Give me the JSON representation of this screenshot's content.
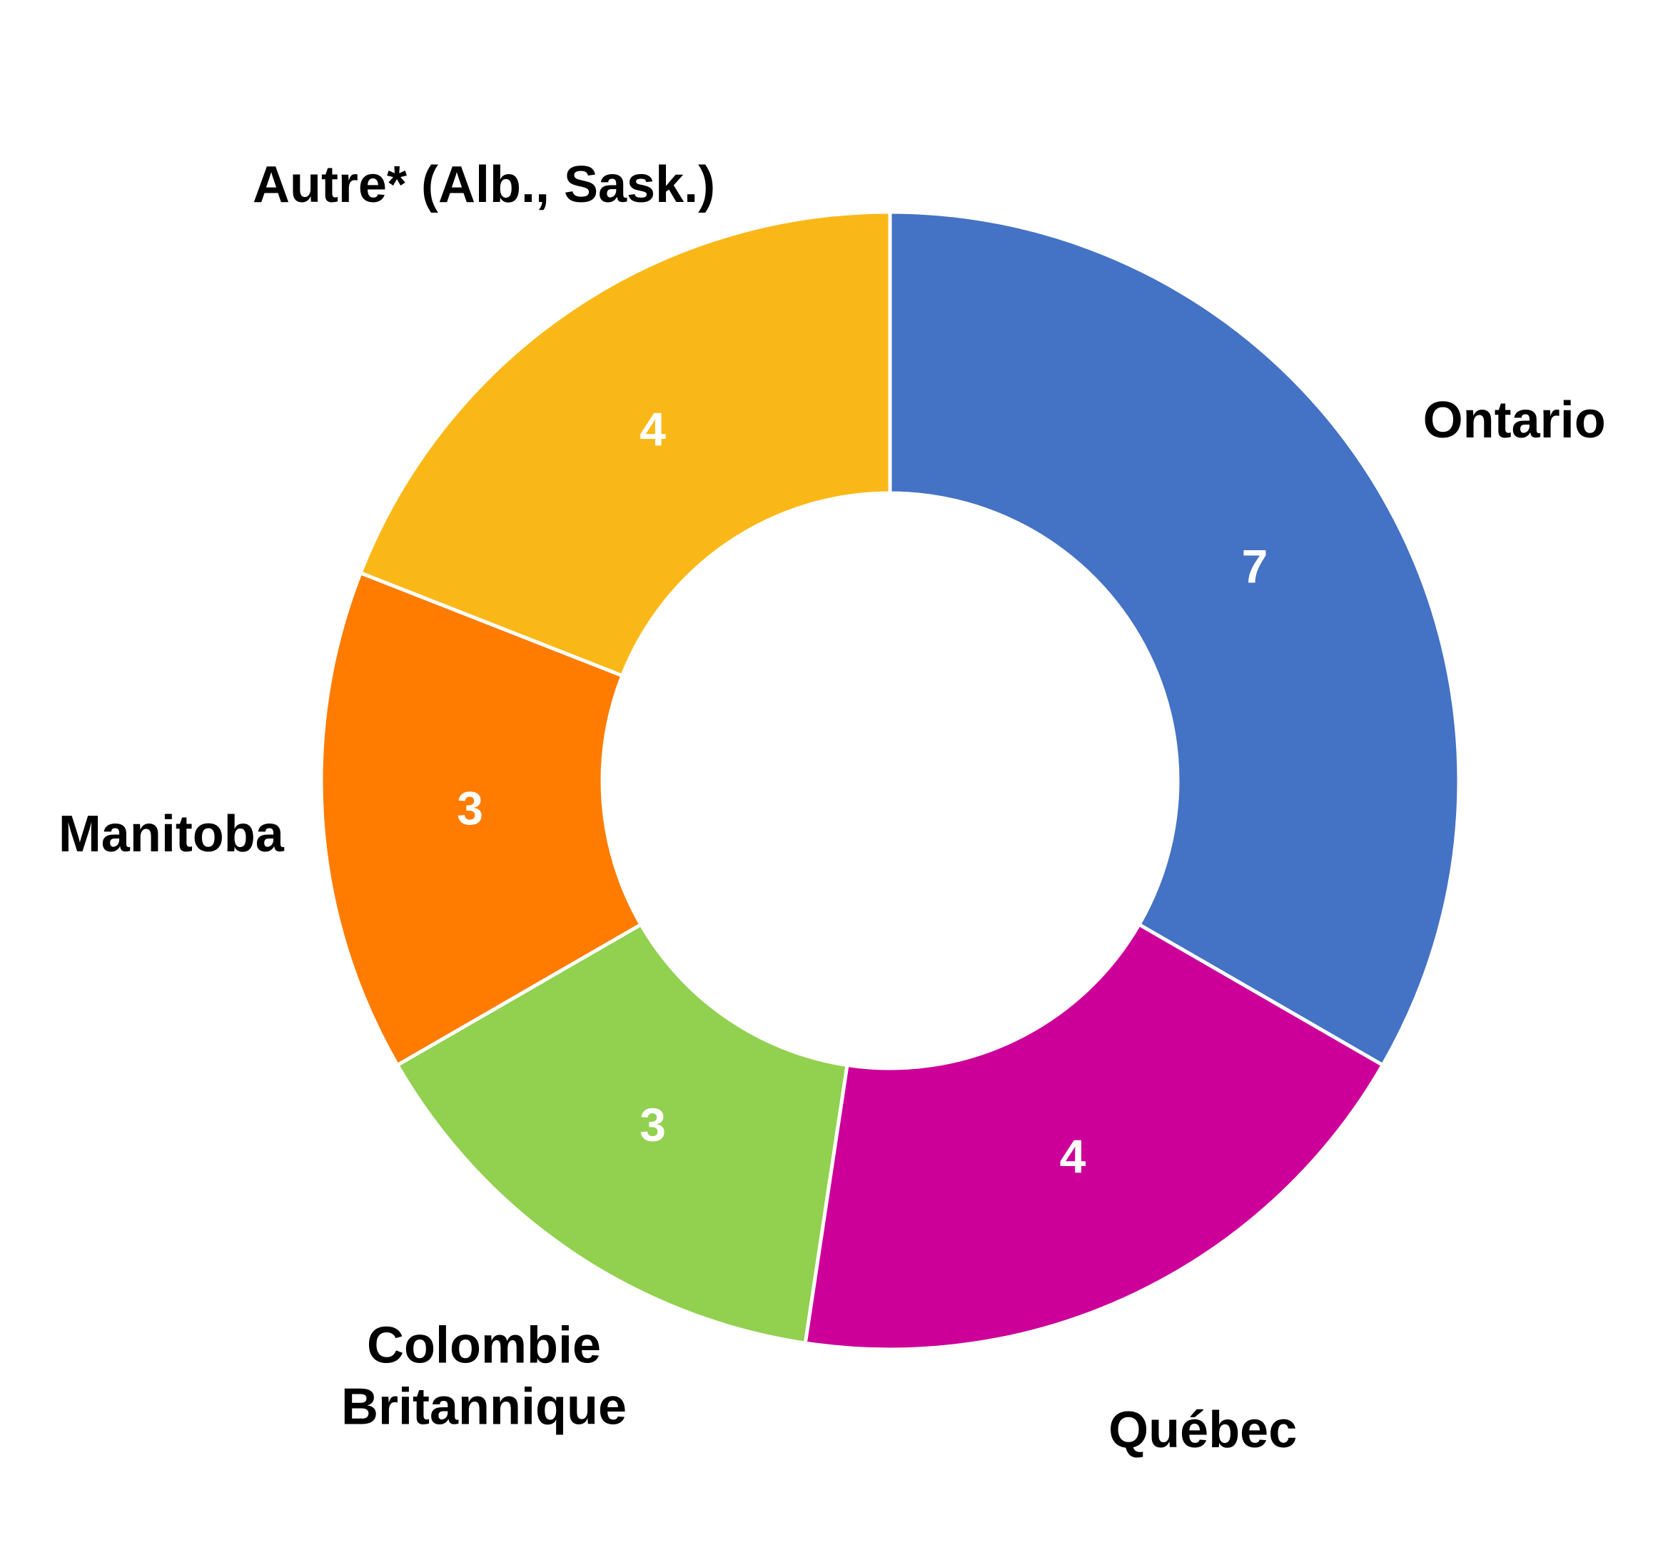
{
  "chart_data": {
    "type": "donut",
    "categories": [
      "Ontario",
      "Québec",
      "Colombie Britannique",
      "Manitoba",
      "Autre* (Alb., Sask.)"
    ],
    "values": [
      7,
      4,
      3,
      3,
      4
    ],
    "colors": [
      "#4472c4",
      "#cc0099",
      "#92d050",
      "#ff7c00",
      "#fab818"
    ]
  }
}
